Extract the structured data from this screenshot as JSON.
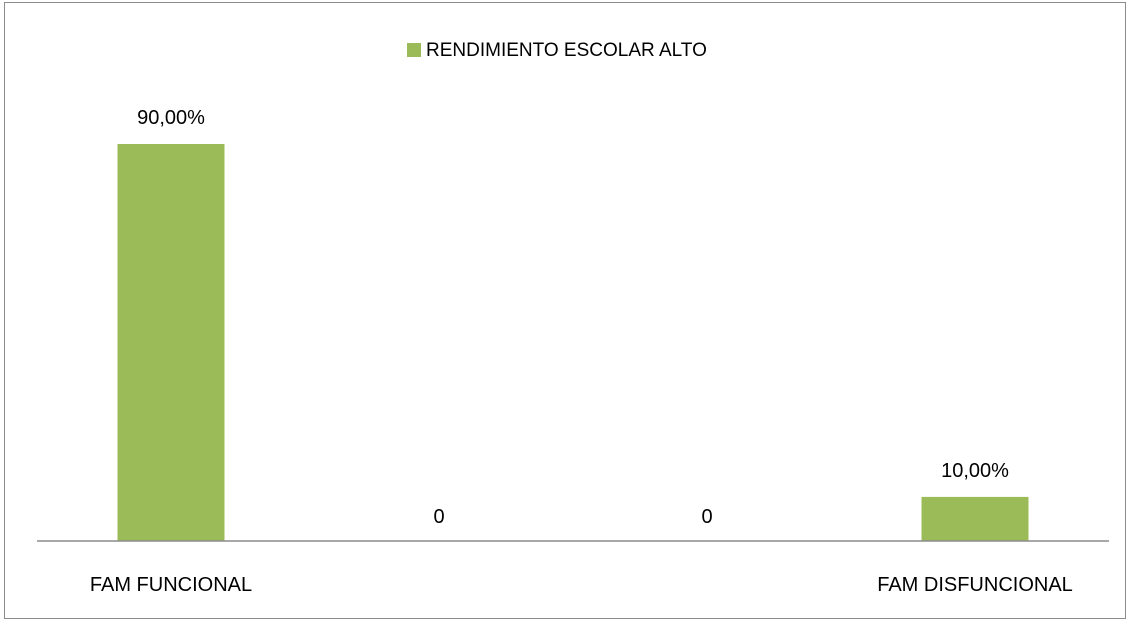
{
  "colors": {
    "bar": "#9bbb59",
    "axis": "#8c8c8c"
  },
  "chart_data": {
    "type": "bar",
    "categories": [
      "FAM FUNCIONAL",
      "",
      "",
      "FAM DISFUNCIONAL"
    ],
    "series": [
      {
        "name": "RENDIMIENTO ESCOLAR ALTO",
        "values": [
          0.9,
          0,
          0,
          0.1
        ],
        "value_labels": [
          "90,00%",
          "0",
          "0",
          "10,00%"
        ]
      }
    ],
    "ylim": [
      0,
      1
    ],
    "grid": false,
    "legend_position": "top"
  }
}
